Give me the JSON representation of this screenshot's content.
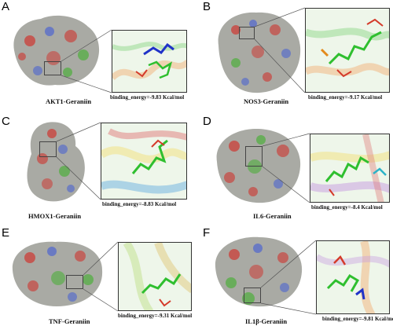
{
  "panels": [
    {
      "letter": "A",
      "complex": "AKT1-Geraniin",
      "binding": "binding_energy=-9.83 Kcal/mol"
    },
    {
      "letter": "B",
      "complex": "NOS3-Geraniin",
      "binding": "binding_energy=-9.17 Kcal/mol"
    },
    {
      "letter": "C",
      "complex": "HMOX1-Geraniin",
      "binding": "binding_energy=-8.83 Kcal/mol"
    },
    {
      "letter": "D",
      "complex": "IL6-Geraniin",
      "binding": "binding_energy=-8.4 Kcal/mol"
    },
    {
      "letter": "E",
      "complex": "TNF-Geraniin",
      "binding": "binding_energy=-9.31 Kcal/mol"
    },
    {
      "letter": "F",
      "complex": "IL1β-Geraniin",
      "binding": "binding_energy=-9.81 Kcal/mol"
    }
  ],
  "colors": {
    "surface_gray": "#a9aaa4",
    "surface_red": "#c9453f",
    "surface_blue": "#5a6ec9",
    "surface_green": "#4fae3c",
    "ligand_green": "#2fbf2f",
    "ligand_red": "#d43a2a",
    "ligand_blue": "#2033c8"
  }
}
